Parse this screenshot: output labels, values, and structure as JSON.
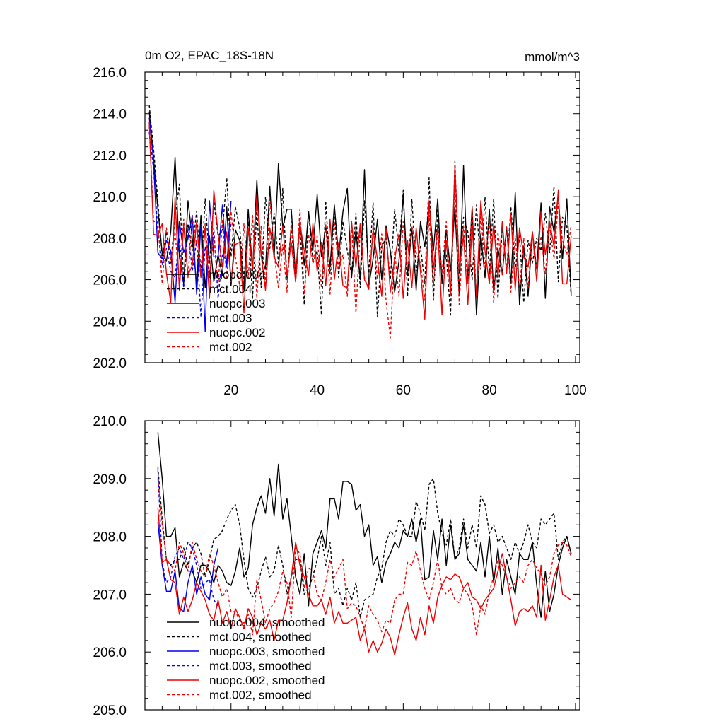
{
  "colors": {
    "nuopc_004": "#000000",
    "mct_004": "#000000",
    "nuopc_003": "#0000ee",
    "mct_003": "#0000ee",
    "nuopc_002": "#ee0000",
    "mct_002": "#ee0000"
  },
  "chart_data": [
    {
      "type": "line",
      "title": "0m O2, EPAC_18S-18N",
      "units": "mmol/m^3",
      "xlim": [
        0,
        101
      ],
      "ylim": [
        202.0,
        216.0
      ],
      "yticks": [
        "202.0",
        "204.0",
        "206.0",
        "208.0",
        "210.0",
        "212.0",
        "214.0",
        "216.0"
      ],
      "yticks_values": [
        202,
        204,
        206,
        208,
        210,
        212,
        214,
        216
      ],
      "xticks": [
        "20",
        "40",
        "60",
        "80",
        "100"
      ],
      "xticks_values": [
        20,
        40,
        60,
        80,
        100
      ],
      "legend": [
        "nuopc.004",
        "mct.004",
        "nuopc.003",
        "mct.003",
        "nuopc.002",
        "mct.002"
      ],
      "series": [
        {
          "name": "nuopc.004",
          "color": "#000000",
          "dash": "solid",
          "x0": 1,
          "values": [
            214.1,
            211.8,
            209.4,
            207.3,
            206.9,
            208.3,
            211.9,
            207.1,
            205.8,
            209.8,
            208.0,
            205.8,
            209.1,
            205.6,
            208.1,
            205.9,
            207.2,
            206.2,
            209.5,
            205.7,
            208.4,
            207.9,
            205.5,
            209.4,
            206.4,
            210.8,
            207.1,
            206.5,
            210.5,
            207.0,
            211.6,
            208.5,
            209.4,
            209.4,
            206.2,
            208.8,
            206.7,
            209.3,
            207.4,
            210.1,
            207.1,
            208.6,
            206.6,
            209.6,
            207.1,
            209.3,
            210.4,
            206.1,
            208.4,
            206.0,
            211.3,
            205.7,
            207.0,
            208.9,
            206.0,
            208.6,
            207.4,
            205.4,
            206.9,
            210.1,
            206.2,
            208.5,
            205.5,
            208.8,
            207.6,
            209.6,
            207.4,
            209.9,
            205.8,
            208.4,
            206.4,
            209.5,
            205.3,
            211.5,
            205.9,
            209.5,
            204.3,
            208.2,
            206.1,
            209.4,
            205.4,
            207.5,
            206.3,
            208.5,
            205.8,
            210.2,
            204.8,
            207.6,
            205.2,
            208.3,
            206.5,
            209.7,
            205.1,
            209.5,
            208.3,
            210.1,
            207.0,
            209.9,
            205.3
          ]
        },
        {
          "name": "mct.004",
          "color": "#000000",
          "dash": "dash",
          "x0": 1,
          "values": [
            214.4,
            212.3,
            209.8,
            207.1,
            208.3,
            206.8,
            209.0,
            210.6,
            205.9,
            208.7,
            207.4,
            209.3,
            206.3,
            209.9,
            206.8,
            209.8,
            208.1,
            208.4,
            210.9,
            207.1,
            209.5,
            208.5,
            206.0,
            208.8,
            205.1,
            209.4,
            205.6,
            210.0,
            207.5,
            209.2,
            206.8,
            210.4,
            206.0,
            208.6,
            205.9,
            208.6,
            204.8,
            209.3,
            206.8,
            207.4,
            204.3,
            209.8,
            206.3,
            209.5,
            206.1,
            208.8,
            207.4,
            206.2,
            209.2,
            205.6,
            209.8,
            206.3,
            209.7,
            204.2,
            207.6,
            208.0,
            206.0,
            209.4,
            207.3,
            210.3,
            205.2,
            209.9,
            206.4,
            207.6,
            205.8,
            210.9,
            205.0,
            209.4,
            206.0,
            207.2,
            204.3,
            211.7,
            206.3,
            209.0,
            208.3,
            206.0,
            209.6,
            206.5,
            210.0,
            206.3,
            209.9,
            205.1,
            208.5,
            206.4,
            209.5,
            206.5,
            208.1,
            204.9,
            207.9,
            206.8,
            208.0,
            207.4,
            209.2,
            207.3,
            210.5,
            205.9,
            209.0,
            208.6,
            205.2
          ]
        },
        {
          "name": "nuopc.003",
          "color": "#0000ee",
          "dash": "solid",
          "x0": 1,
          "values": [
            213.8,
            211.7,
            207.3,
            207.0,
            207.9,
            207.4,
            204.9,
            208.8,
            207.3,
            208.0,
            209.1,
            205.3,
            208.6,
            203.5,
            209.8,
            207.1,
            207.1,
            209.6,
            206.6,
            209.8
          ]
        },
        {
          "name": "mct.003",
          "color": "#0000ee",
          "dash": "dash",
          "x0": 1,
          "values": [
            213.1,
            211.3,
            208.4,
            206.7,
            207.5,
            206.4,
            206.1,
            208.0,
            205.6,
            208.5,
            206.4,
            207.9,
            204.2,
            207.6,
            206.1,
            208.5,
            205.1,
            207.2,
            206.9,
            208.7
          ]
        },
        {
          "name": "nuopc.002",
          "color": "#ee0000",
          "dash": "solid",
          "x0": 1,
          "values": [
            213.6,
            208.2,
            208.1,
            208.7,
            206.3,
            204.9,
            210.0,
            205.5,
            208.6,
            206.2,
            206.7,
            208.8,
            206.1,
            208.5,
            205.1,
            210.3,
            208.2,
            206.6,
            208.3,
            205.9,
            207.7,
            207.8,
            204.4,
            208.5,
            206.5,
            210.1,
            207.2,
            205.5,
            208.5,
            207.1,
            206.6,
            208.6,
            206.2,
            207.8,
            205.9,
            208.7,
            207.4,
            206.2,
            208.7,
            206.4,
            207.8,
            205.7,
            208.9,
            206.0,
            207.8,
            205.7,
            205.6,
            208.8,
            206.6,
            208.7,
            206.0,
            205.6,
            208.4,
            207.0,
            205.2,
            208.5,
            205.4,
            207.0,
            208.2,
            205.1,
            207.9,
            205.6,
            208.5,
            206.4,
            204.1,
            209.8,
            206.5,
            208.6,
            204.3,
            207.9,
            205.3,
            211.5,
            206.5,
            208.1,
            204.8,
            208.6,
            205.2,
            209.8,
            207.4,
            205.8,
            208.7,
            206.1,
            208.8,
            206.3,
            209.2,
            205.5,
            208.5,
            207.1,
            206.6,
            208.3,
            205.9,
            209.3,
            207.2,
            208.8,
            207.6,
            210.3,
            205.8,
            205.8,
            208.1
          ]
        },
        {
          "name": "mct.002",
          "color": "#ee0000",
          "dash": "dash",
          "x0": 1,
          "values": [
            213.4,
            208.8,
            208.8,
            205.8,
            208.5,
            206.9,
            208.3,
            205.8,
            208.9,
            206.1,
            209.0,
            207.7,
            206.1,
            208.7,
            206.2,
            208.1,
            205.7,
            208.9,
            206.0,
            209.3,
            207.1,
            205.7,
            208.7,
            206.1,
            209.1,
            205.1,
            208.6,
            205.7,
            209.9,
            207.3,
            205.6,
            207.7,
            205.4,
            208.8,
            206.0,
            209.4,
            205.3,
            208.2,
            206.8,
            208.1,
            205.6,
            208.7,
            205.3,
            208.8,
            206.5,
            207.2,
            205.2,
            208.7,
            204.4,
            208.4,
            206.1,
            205.5,
            208.6,
            206.0,
            208.2,
            205.0,
            203.2,
            207.4,
            205.2,
            208.8,
            206.5,
            208.6,
            207.3,
            206.8,
            205.0,
            209.1,
            205.7,
            208.5,
            206.3,
            208.8,
            205.3,
            210.8,
            204.8,
            208.6,
            205.8,
            209.5,
            205.1,
            209.2,
            206.6,
            209.0,
            204.9,
            208.3,
            206.2,
            208.6,
            205.4,
            208.1,
            205.5,
            208.0,
            205.6,
            208.3,
            206.5,
            208.1,
            206.3,
            208.6,
            207.0,
            209.7,
            207.9,
            207.2,
            208.6
          ]
        }
      ]
    },
    {
      "type": "line",
      "title": "",
      "xlim": [
        0,
        101
      ],
      "ylim": [
        205.0,
        210.0
      ],
      "yticks": [
        "205.0",
        "206.0",
        "207.0",
        "208.0",
        "209.0",
        "210.0"
      ],
      "yticks_values": [
        205,
        206,
        207,
        208,
        209,
        210
      ],
      "legend": [
        "nuopc.004, smoothed",
        "mct.004, smoothed",
        "nuopc.003, smoothed",
        "mct.003, smoothed",
        "nuopc.002, smoothed",
        "mct.002, smoothed"
      ],
      "series": [
        {
          "name": "nuopc.004, smoothed",
          "color": "#000000",
          "dash": "solid",
          "x0": 3,
          "values": [
            209.8,
            209.0,
            208.0,
            208.0,
            208.15,
            207.3,
            207.55,
            207.4,
            207.4,
            207.2,
            207.5,
            207.5,
            207.4,
            207.2,
            207.5,
            207.4,
            207.2,
            207.15,
            207.4,
            207.8,
            207.3,
            207.45,
            208.2,
            208.5,
            208.7,
            208.4,
            209.0,
            208.35,
            209.25,
            208.3,
            208.65,
            208.0,
            207.3,
            207.0,
            207.7,
            206.8,
            207.7,
            207.9,
            208.1,
            207.8,
            208.65,
            208.65,
            208.3,
            208.95,
            208.95,
            208.9,
            208.45,
            208.55,
            208.0,
            208.2,
            207.5,
            207.65,
            207.2,
            207.55,
            207.7,
            207.9,
            207.8,
            208.1,
            208.0,
            208.3,
            207.9,
            208.3,
            207.25,
            207.3,
            208.1,
            207.6,
            208.3,
            207.5,
            208.2,
            207.6,
            207.7,
            208.2,
            207.6,
            207.5,
            207.4,
            207.9,
            207.3,
            208.0,
            207.2,
            207.8,
            207.0,
            207.6,
            207.3,
            207.0,
            207.7,
            207.6,
            207.6,
            207.9,
            207.15,
            206.6,
            207.4,
            206.7,
            207.0,
            207.5,
            207.8,
            208.0,
            207.7
          ]
        },
        {
          "name": "mct.004, smoothed",
          "color": "#000000",
          "dash": "dash",
          "x0": 3,
          "values": [
            209.2,
            208.3,
            207.6,
            207.5,
            207.6,
            207.6,
            207.8,
            207.5,
            207.8,
            207.9,
            207.7,
            207.3,
            207.6,
            207.95,
            208.0,
            208.1,
            208.3,
            208.45,
            208.55,
            208.2,
            207.6,
            207.1,
            206.95,
            207.1,
            207.4,
            207.65,
            207.3,
            207.4,
            207.85,
            207.5,
            207.0,
            207.3,
            207.6,
            207.6,
            207.0,
            207.1,
            207.3,
            207.6,
            208.0,
            207.5,
            207.9,
            207.0,
            207.1,
            206.8,
            207.1,
            206.9,
            207.2,
            206.6,
            206.9,
            206.95,
            207.0,
            207.3,
            207.45,
            207.9,
            208.1,
            208.0,
            208.3,
            208.2,
            208.0,
            208.0,
            208.6,
            208.4,
            208.1,
            208.9,
            209.0,
            208.4,
            208.05,
            207.85,
            208.3,
            207.6,
            207.8,
            208.3,
            207.8,
            208.2,
            207.8,
            208.7,
            208.55,
            208.05,
            208.2,
            207.9,
            208.0,
            207.8,
            207.6,
            207.9,
            207.7,
            207.9,
            208.2,
            207.9,
            207.8,
            208.3,
            208.2,
            208.3,
            208.4,
            207.6,
            207.9,
            208.0,
            207.7
          ]
        },
        {
          "name": "nuopc.003, smoothed",
          "color": "#0000ee",
          "dash": "solid",
          "x0": 3,
          "values": [
            208.25,
            207.5,
            207.05,
            207.05,
            207.4,
            206.75,
            206.7,
            207.2,
            207.5,
            207.0,
            207.3,
            207.0,
            206.9,
            207.5,
            207.8
          ]
        },
        {
          "name": "mct.003, smoothed",
          "color": "#0000ee",
          "dash": "dash",
          "x0": 3,
          "values": [
            209.15,
            207.55,
            207.2,
            207.3,
            207.65,
            207.8,
            207.6,
            207.9,
            207.8,
            207.5,
            207.1,
            207.2,
            207.25,
            206.9,
            206.8
          ]
        },
        {
          "name": "nuopc.002, smoothed",
          "color": "#ee0000",
          "dash": "solid",
          "x0": 3,
          "values": [
            208.5,
            207.55,
            207.6,
            207.25,
            207.2,
            206.65,
            206.95,
            206.7,
            206.9,
            207.2,
            207.05,
            206.9,
            206.65,
            206.55,
            206.9,
            206.5,
            206.7,
            206.4,
            206.75,
            206.6,
            206.4,
            206.75,
            206.6,
            206.3,
            206.5,
            206.4,
            206.55,
            206.2,
            206.55,
            206.55,
            206.85,
            207.3,
            207.9,
            207.5,
            207.3,
            207.0,
            206.8,
            206.8,
            206.9,
            206.65,
            206.95,
            206.5,
            206.7,
            206.5,
            206.5,
            206.55,
            206.6,
            206.2,
            206.4,
            206.0,
            206.2,
            206.0,
            206.15,
            206.4,
            206.25,
            205.95,
            206.3,
            206.6,
            206.85,
            206.4,
            206.2,
            206.6,
            206.3,
            206.8,
            206.5,
            206.95,
            207.15,
            207.3,
            207.25,
            207.35,
            207.3,
            207.1,
            207.2,
            206.95,
            206.9,
            206.75,
            206.9,
            207.0,
            207.1,
            207.4,
            207.7,
            207.3,
            206.9,
            206.45,
            206.7,
            206.75,
            206.7,
            206.8,
            206.6,
            207.5,
            206.55,
            206.9,
            207.3,
            207.5,
            207.0,
            206.95,
            206.9
          ]
        },
        {
          "name": "mct.002, smoothed",
          "color": "#ee0000",
          "dash": "dash",
          "x0": 3,
          "values": [
            209.0,
            208.2,
            207.6,
            207.5,
            207.4,
            207.9,
            207.7,
            207.4,
            207.9,
            207.6,
            207.4,
            207.3,
            207.7,
            207.5,
            207.2,
            206.95,
            207.1,
            206.7,
            206.7,
            206.55,
            206.5,
            206.65,
            206.3,
            207.25,
            206.9,
            206.5,
            206.75,
            206.85,
            207.05,
            207.4,
            207.2,
            206.6,
            207.8,
            207.7,
            207.1,
            207.45,
            207.4,
            207.0,
            206.9,
            207.2,
            207.6,
            207.3,
            207.45,
            207.6,
            206.75,
            206.85,
            206.8,
            206.6,
            206.4,
            206.8,
            206.65,
            206.55,
            206.35,
            206.55,
            206.5,
            206.9,
            207.0,
            207.0,
            207.55,
            207.5,
            207.75,
            207.4,
            207.1,
            206.9,
            207.2,
            207.6,
            207.1,
            207.0,
            207.1,
            206.9,
            206.85,
            207.1,
            207.0,
            206.8,
            206.3,
            206.8,
            206.65,
            207.05,
            207.3,
            207.6,
            207.5,
            207.3,
            207.1,
            207.2,
            207.3,
            207.2,
            207.5,
            207.6,
            207.45,
            207.35,
            207.15,
            207.3,
            207.7,
            207.85,
            207.9,
            207.85,
            207.65
          ]
        }
      ]
    }
  ]
}
